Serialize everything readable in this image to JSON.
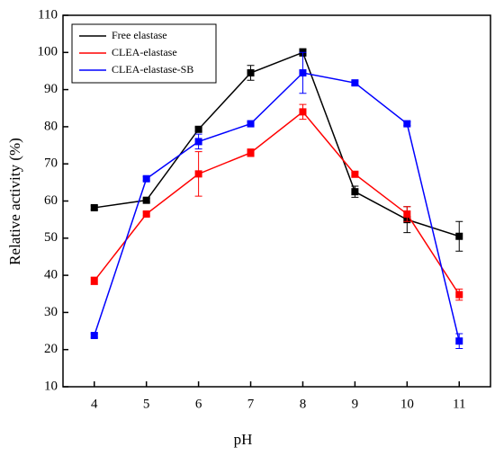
{
  "chart_data": {
    "type": "line",
    "x_label": "pH",
    "y_label": "Relative activity (%)",
    "x": [
      4,
      5,
      6,
      7,
      8,
      9,
      10,
      11
    ],
    "xlim": [
      3.4,
      11.6
    ],
    "xticks": [
      4,
      5,
      6,
      7,
      8,
      9,
      10,
      11
    ],
    "ylim": [
      10,
      110
    ],
    "yticks": [
      10,
      20,
      30,
      40,
      50,
      60,
      70,
      80,
      90,
      100,
      110
    ],
    "legend": "upper left",
    "series": [
      {
        "name": "Free elastase",
        "color": "#000000",
        "values": [
          58.2,
          60.2,
          79.3,
          94.5,
          100,
          62.5,
          55,
          50.5
        ],
        "errors": [
          0.5,
          0.5,
          0.5,
          2,
          1,
          1.5,
          3.5,
          4
        ]
      },
      {
        "name": "CLEA-elastase",
        "color": "#ff0000",
        "values": [
          38.5,
          56.5,
          67.3,
          73,
          84,
          67.2,
          56.5,
          34.8
        ],
        "errors": [
          1,
          0.5,
          6,
          1,
          2,
          0.5,
          2,
          1.5
        ]
      },
      {
        "name": "CLEA-elastase-SB",
        "color": "#0000ff",
        "values": [
          23.8,
          66,
          76,
          80.8,
          94.5,
          91.8,
          80.8,
          22.3
        ],
        "errors": [
          0.5,
          0.5,
          2,
          0.5,
          5.5,
          0.5,
          0.5,
          2
        ]
      }
    ]
  }
}
